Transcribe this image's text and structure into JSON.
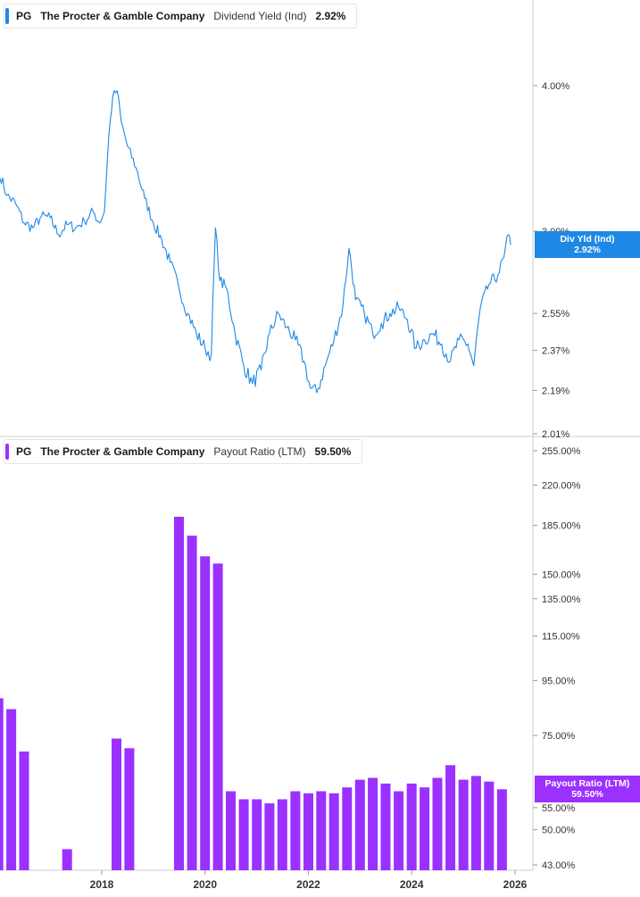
{
  "chart_data": [
    {
      "type": "line",
      "legend": {
        "ticker": "PG",
        "company": "The Procter & Gamble Company",
        "metric": "Dividend Yield (Ind)",
        "value": "2.92%"
      },
      "series": [
        {
          "name": "Div Yld (Ind)",
          "color": "#1e88e5",
          "points": [
            [
              "2016-01-01",
              3.36
            ],
            [
              "2016-03-01",
              3.22
            ],
            [
              "2016-05-01",
              3.17
            ],
            [
              "2016-07-01",
              3.05
            ],
            [
              "2016-09-01",
              3.02
            ],
            [
              "2016-11-01",
              3.09
            ],
            [
              "2017-01-01",
              3.08
            ],
            [
              "2017-03-01",
              2.98
            ],
            [
              "2017-05-01",
              3.04
            ],
            [
              "2017-07-01",
              3.02
            ],
            [
              "2017-09-01",
              3.06
            ],
            [
              "2017-11-01",
              3.12
            ],
            [
              "2017-12-15",
              3.05
            ],
            [
              "2018-01-20",
              3.12
            ],
            [
              "2018-02-20",
              3.62
            ],
            [
              "2018-03-20",
              3.92
            ],
            [
              "2018-04-20",
              3.96
            ],
            [
              "2018-05-20",
              3.72
            ],
            [
              "2018-07-01",
              3.55
            ],
            [
              "2018-09-01",
              3.4
            ],
            [
              "2018-11-01",
              3.2
            ],
            [
              "2019-01-01",
              3.05
            ],
            [
              "2019-03-01",
              2.95
            ],
            [
              "2019-05-01",
              2.82
            ],
            [
              "2019-07-01",
              2.68
            ],
            [
              "2019-09-01",
              2.55
            ],
            [
              "2019-11-01",
              2.45
            ],
            [
              "2020-01-01",
              2.38
            ],
            [
              "2020-02-15",
              2.35
            ],
            [
              "2020-03-15",
              3.02
            ],
            [
              "2020-04-15",
              2.72
            ],
            [
              "2020-06-01",
              2.68
            ],
            [
              "2020-08-01",
              2.45
            ],
            [
              "2020-10-01",
              2.3
            ],
            [
              "2020-12-01",
              2.22
            ],
            [
              "2021-02-01",
              2.28
            ],
            [
              "2021-04-01",
              2.45
            ],
            [
              "2021-06-01",
              2.55
            ],
            [
              "2021-08-01",
              2.48
            ],
            [
              "2021-10-01",
              2.42
            ],
            [
              "2021-12-01",
              2.32
            ],
            [
              "2022-01-15",
              2.2
            ],
            [
              "2022-03-01",
              2.18
            ],
            [
              "2022-05-01",
              2.3
            ],
            [
              "2022-07-01",
              2.42
            ],
            [
              "2022-09-01",
              2.58
            ],
            [
              "2022-10-15",
              2.9
            ],
            [
              "2022-12-01",
              2.62
            ],
            [
              "2023-02-01",
              2.55
            ],
            [
              "2023-04-01",
              2.45
            ],
            [
              "2023-06-01",
              2.5
            ],
            [
              "2023-08-01",
              2.55
            ],
            [
              "2023-10-01",
              2.58
            ],
            [
              "2023-12-01",
              2.52
            ],
            [
              "2024-02-01",
              2.38
            ],
            [
              "2024-04-01",
              2.42
            ],
            [
              "2024-06-01",
              2.45
            ],
            [
              "2024-08-01",
              2.4
            ],
            [
              "2024-10-01",
              2.32
            ],
            [
              "2024-12-01",
              2.42
            ],
            [
              "2025-02-01",
              2.4
            ],
            [
              "2025-03-15",
              2.3
            ],
            [
              "2025-05-01",
              2.58
            ],
            [
              "2025-07-01",
              2.7
            ],
            [
              "2025-09-01",
              2.75
            ],
            [
              "2025-10-15",
              2.85
            ],
            [
              "2025-11-15",
              2.98
            ],
            [
              "2025-12-01",
              2.92
            ]
          ]
        }
      ],
      "y_ticks": [
        "4.00%",
        "3.00%",
        "2.55%",
        "2.37%",
        "2.19%",
        "2.01%"
      ],
      "y_tick_values": [
        4.0,
        3.0,
        2.55,
        2.37,
        2.19,
        2.01
      ],
      "y_scale": "log",
      "ylim": [
        2.01,
        4.3
      ],
      "last_value_flag": {
        "label": "Div Yld (Ind)",
        "value": "2.92%",
        "y": 2.92,
        "color": "#1e88e5"
      }
    },
    {
      "type": "bar",
      "legend": {
        "ticker": "PG",
        "company": "The Procter & Gamble Company",
        "metric": "Payout Ratio (LTM)",
        "value": "59.50%"
      },
      "series": [
        {
          "name": "Payout Ratio (LTM)",
          "color": "#9b30ff",
          "points": [
            [
              "2016-01-01",
              88
            ],
            [
              "2016-04-01",
              84
            ],
            [
              "2016-07-01",
              70
            ],
            [
              "2017-05-01",
              46
            ],
            [
              "2018-04-15",
              74
            ],
            [
              "2018-07-15",
              71
            ],
            [
              "2019-07-01",
              192
            ],
            [
              "2019-10-01",
              177
            ],
            [
              "2020-01-01",
              162
            ],
            [
              "2020-04-01",
              157
            ],
            [
              "2020-07-01",
              59
            ],
            [
              "2020-10-01",
              57
            ],
            [
              "2021-01-01",
              57
            ],
            [
              "2021-04-01",
              56
            ],
            [
              "2021-07-01",
              57
            ],
            [
              "2021-10-01",
              59
            ],
            [
              "2022-01-01",
              58.5
            ],
            [
              "2022-04-01",
              59
            ],
            [
              "2022-07-01",
              58.5
            ],
            [
              "2022-10-01",
              60
            ],
            [
              "2023-01-01",
              62
            ],
            [
              "2023-04-01",
              62.5
            ],
            [
              "2023-07-01",
              61
            ],
            [
              "2023-10-01",
              59
            ],
            [
              "2024-01-01",
              61
            ],
            [
              "2024-04-01",
              60
            ],
            [
              "2024-07-01",
              62.5
            ],
            [
              "2024-10-01",
              66
            ],
            [
              "2025-01-01",
              62
            ],
            [
              "2025-04-01",
              63
            ],
            [
              "2025-07-01",
              61.5
            ],
            [
              "2025-10-01",
              59.5
            ]
          ]
        }
      ],
      "y_ticks": [
        "255.00%",
        "220.00%",
        "185.00%",
        "150.00%",
        "135.00%",
        "115.00%",
        "95.00%",
        "75.00%",
        "55.00%",
        "50.00%",
        "43.00%"
      ],
      "y_tick_values": [
        255,
        220,
        185,
        150,
        135,
        115,
        95,
        75,
        55,
        50,
        43
      ],
      "y_scale": "log",
      "ylim": [
        43,
        255
      ],
      "last_value_flag": {
        "label": "Payout Ratio (LTM)",
        "value": "59.50%",
        "y": 59.5,
        "color": "#9b30ff"
      }
    }
  ],
  "x_axis": {
    "ticks": [
      "2018",
      "2020",
      "2022",
      "2024",
      "2026"
    ],
    "tick_dates": [
      "2018-01-01",
      "2020-01-01",
      "2022-01-01",
      "2024-01-01",
      "2026-01-01"
    ]
  }
}
